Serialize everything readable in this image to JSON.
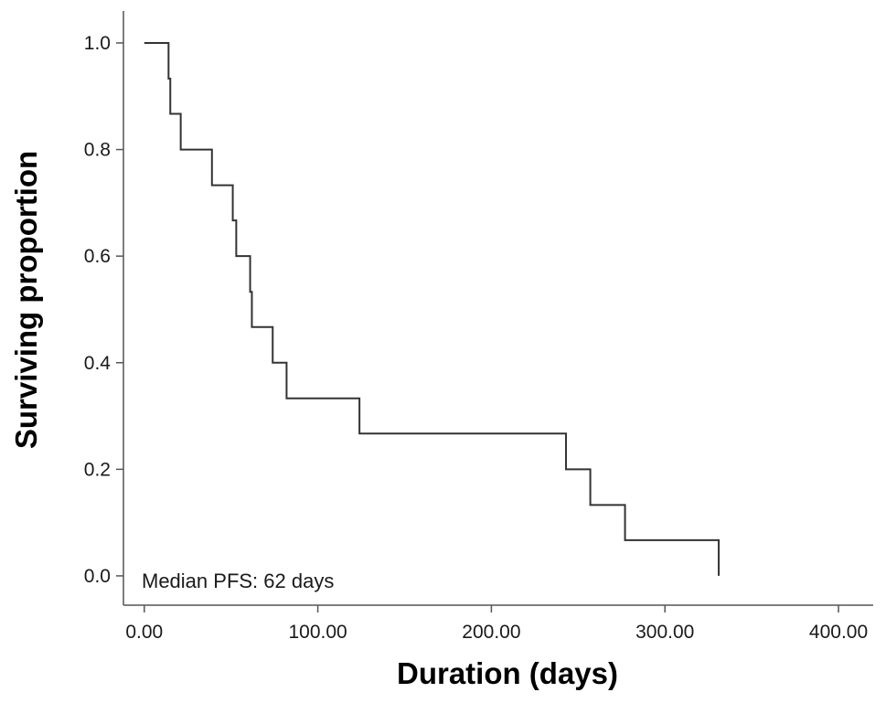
{
  "chart_data": {
    "type": "line",
    "subtype": "kaplan-meier-step",
    "xlabel": "Duration (days)",
    "ylabel": "Surviving proportion",
    "xlim": [
      -12,
      420
    ],
    "ylim": [
      -0.055,
      1.06
    ],
    "x_ticks": [
      0,
      100,
      200,
      300,
      400
    ],
    "x_tick_labels": [
      "0.00",
      "100.00",
      "200.00",
      "300.00",
      "400.00"
    ],
    "y_ticks": [
      0.0,
      0.2,
      0.4,
      0.6,
      0.8,
      1.0
    ],
    "y_tick_labels": [
      "0.0",
      "0.2",
      "0.4",
      "0.6",
      "0.8",
      "1.0"
    ],
    "annotation": "Median PFS: 62 days",
    "grid": false,
    "line_color": "#333333",
    "series": [
      {
        "points": [
          {
            "x": 0,
            "y": 1.0
          },
          {
            "x": 14,
            "y": 0.933
          },
          {
            "x": 15,
            "y": 0.867
          },
          {
            "x": 21,
            "y": 0.8
          },
          {
            "x": 39,
            "y": 0.733
          },
          {
            "x": 51,
            "y": 0.667
          },
          {
            "x": 53,
            "y": 0.6
          },
          {
            "x": 61,
            "y": 0.533
          },
          {
            "x": 62,
            "y": 0.467
          },
          {
            "x": 74,
            "y": 0.4
          },
          {
            "x": 82,
            "y": 0.333
          },
          {
            "x": 124,
            "y": 0.267
          },
          {
            "x": 243,
            "y": 0.2
          },
          {
            "x": 257,
            "y": 0.133
          },
          {
            "x": 277,
            "y": 0.067
          },
          {
            "x": 331,
            "y": 0.0
          }
        ]
      }
    ]
  }
}
